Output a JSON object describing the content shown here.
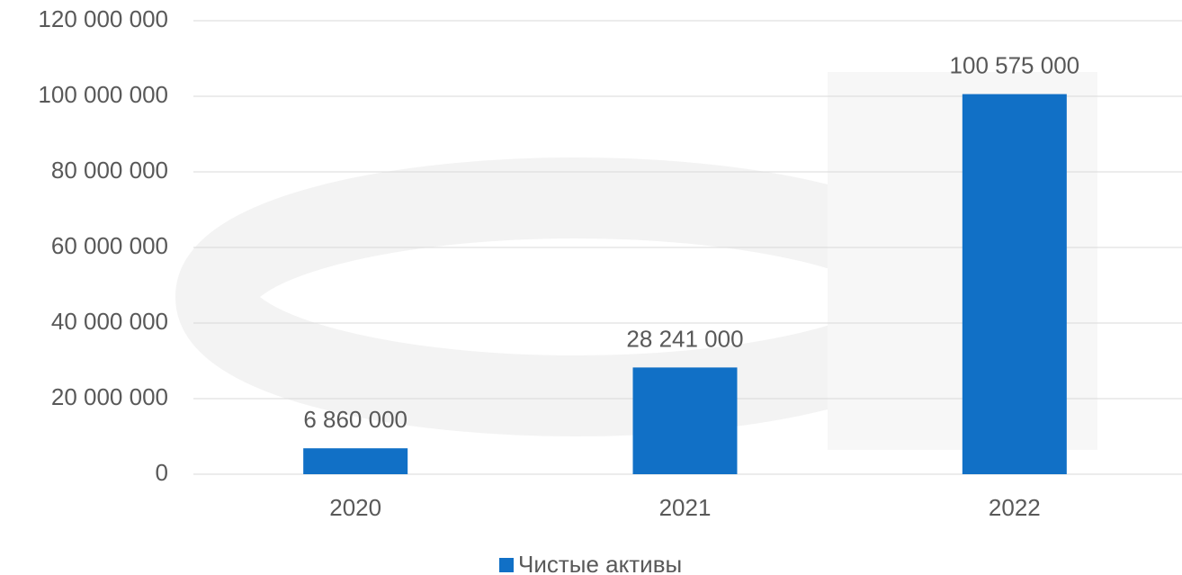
{
  "chart_data": {
    "type": "bar",
    "categories": [
      "2020",
      "2021",
      "2022"
    ],
    "series": [
      {
        "name": "Чистые активы",
        "color": "#1170c6",
        "values": [
          6860000,
          28241000,
          100575000
        ],
        "value_labels": [
          "6 860 000",
          "28 241 000",
          "100 575 000"
        ]
      }
    ],
    "ylim": [
      0,
      120000000
    ],
    "yticks": [
      0,
      {
        "value": 20000000,
        "label": "20 000 000"
      },
      {
        "value": 40000000,
        "label": "40 000 000"
      },
      {
        "value": 60000000,
        "label": "60 000 000"
      },
      {
        "value": 80000000,
        "label": "80 000 000"
      },
      {
        "value": 100000000,
        "label": "100 000 000"
      },
      {
        "value": 120000000,
        "label": "120 000 000"
      }
    ],
    "grid": true,
    "legend": "bottom"
  }
}
